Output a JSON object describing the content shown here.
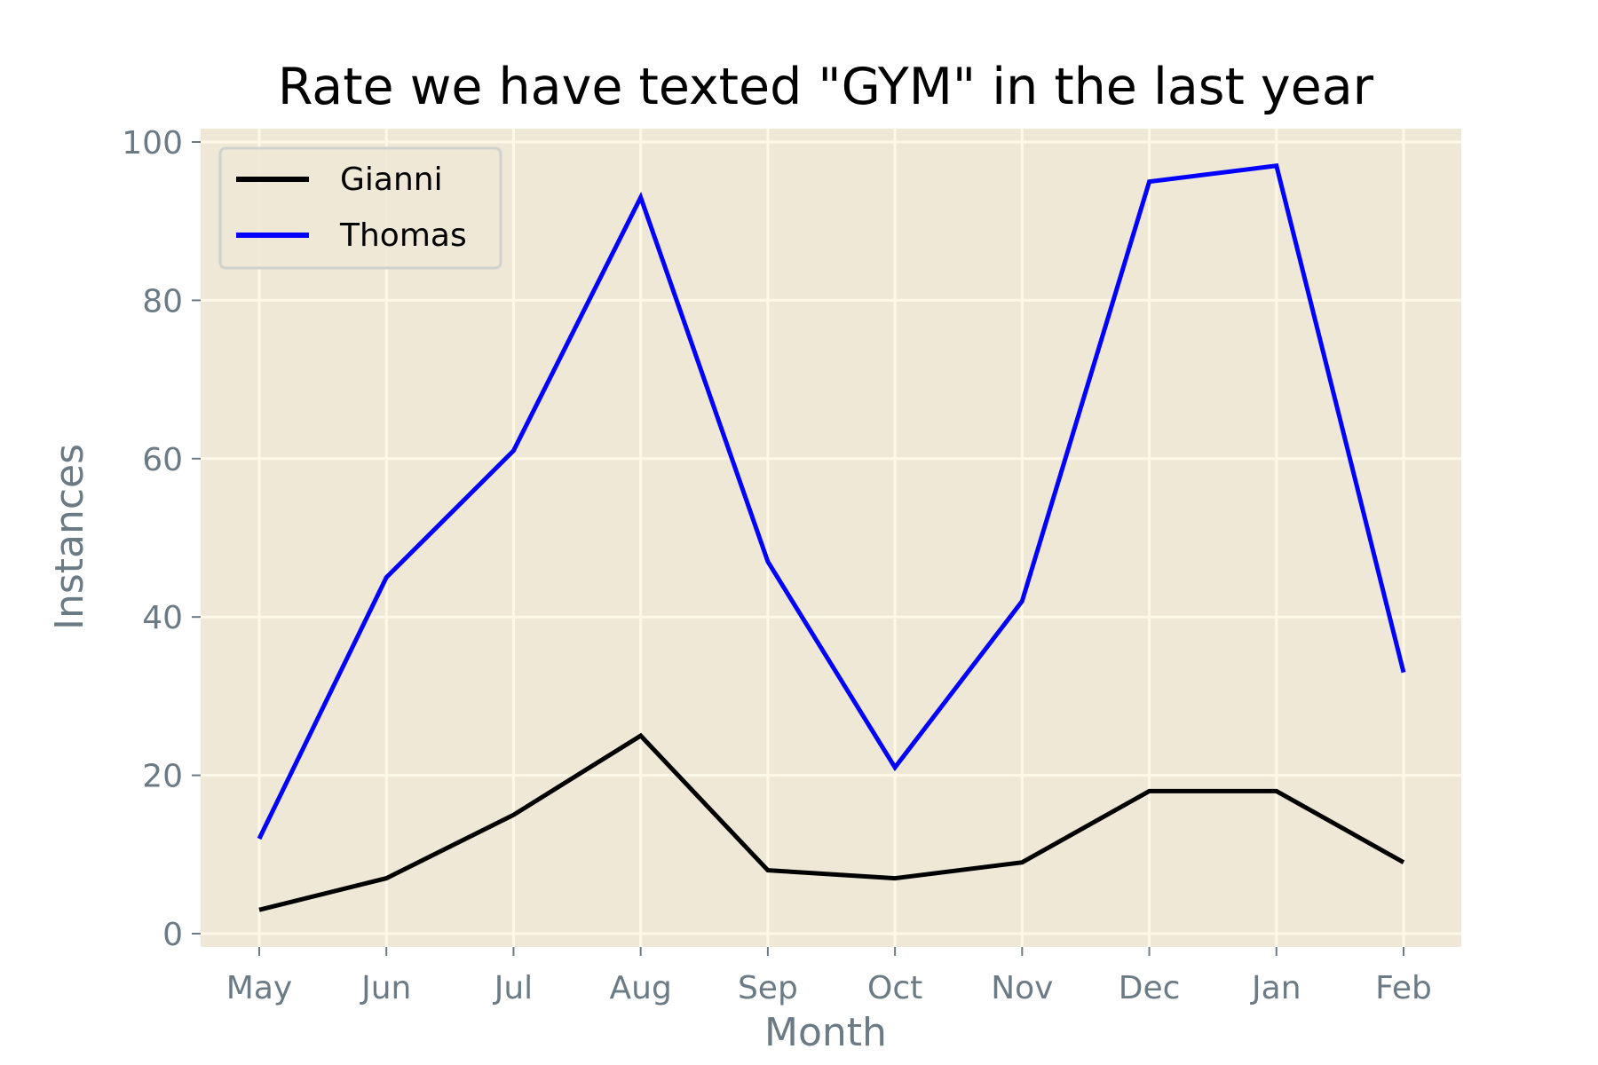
{
  "chart_data": {
    "type": "line",
    "title": "Rate we have texted \"GYM\" in the last year",
    "xlabel": "Month",
    "ylabel": "Instances",
    "categories": [
      "May",
      "Jun",
      "Jul",
      "Aug",
      "Sep",
      "Oct",
      "Nov",
      "Dec",
      "Jan",
      "Feb"
    ],
    "ylim": [
      0,
      100
    ],
    "yticks": [
      0,
      20,
      40,
      60,
      80,
      100
    ],
    "grid": true,
    "legend_position": "top-left",
    "background_color": "#efe8d6",
    "grid_color": "#fdf8e8",
    "series": [
      {
        "name": "Gianni",
        "color": "#000000",
        "values": [
          3,
          7,
          15,
          25,
          8,
          7,
          9,
          18,
          18,
          9
        ]
      },
      {
        "name": "Thomas",
        "color": "#0000ff",
        "values": [
          12,
          45,
          61,
          93,
          47,
          21,
          42,
          95,
          97,
          33
        ]
      }
    ]
  }
}
